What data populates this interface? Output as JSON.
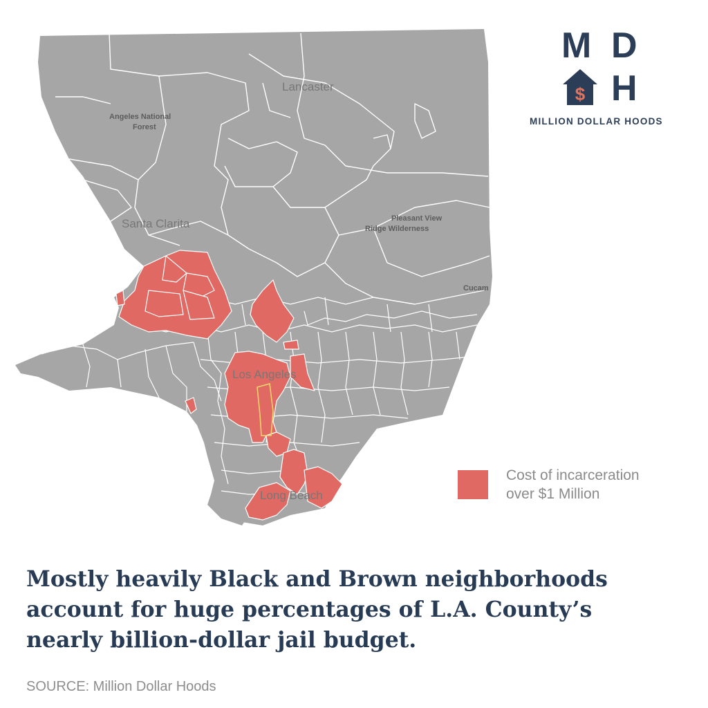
{
  "logo": {
    "letters": [
      "M",
      "D",
      "H"
    ],
    "house_icon": "house-dollar-icon",
    "house_symbol": "$",
    "name": "MILLION DOLLAR HOODS"
  },
  "map": {
    "place_labels": {
      "lancaster": "Lancaster",
      "angeles_forest_1": "Angeles National",
      "angeles_forest_2": "Forest",
      "santa_clarita": "Santa Clarita",
      "pleasant_view_1": "Pleasant View",
      "pleasant_view_2": "Ridge Wilderness",
      "cucamonga": "Cucam",
      "los_angeles": "Los Angeles",
      "long_beach": "Long Beach"
    },
    "colors": {
      "land": "#a6a6a6",
      "boundaries": "#ffffff",
      "highlight": "#e06a63",
      "highlight_outline": "#f2d36b"
    }
  },
  "legend": {
    "line1": "Cost of incarceration",
    "line2": "over $1 Million",
    "color": "#e06a63"
  },
  "headline": {
    "line1": "Mostly heavily Black and Brown neighborhoods",
    "line2": "account for huge percentages of L.A. County’s",
    "line3": "nearly billion-dollar jail budget."
  },
  "source": "SOURCE: Million Dollar Hoods"
}
